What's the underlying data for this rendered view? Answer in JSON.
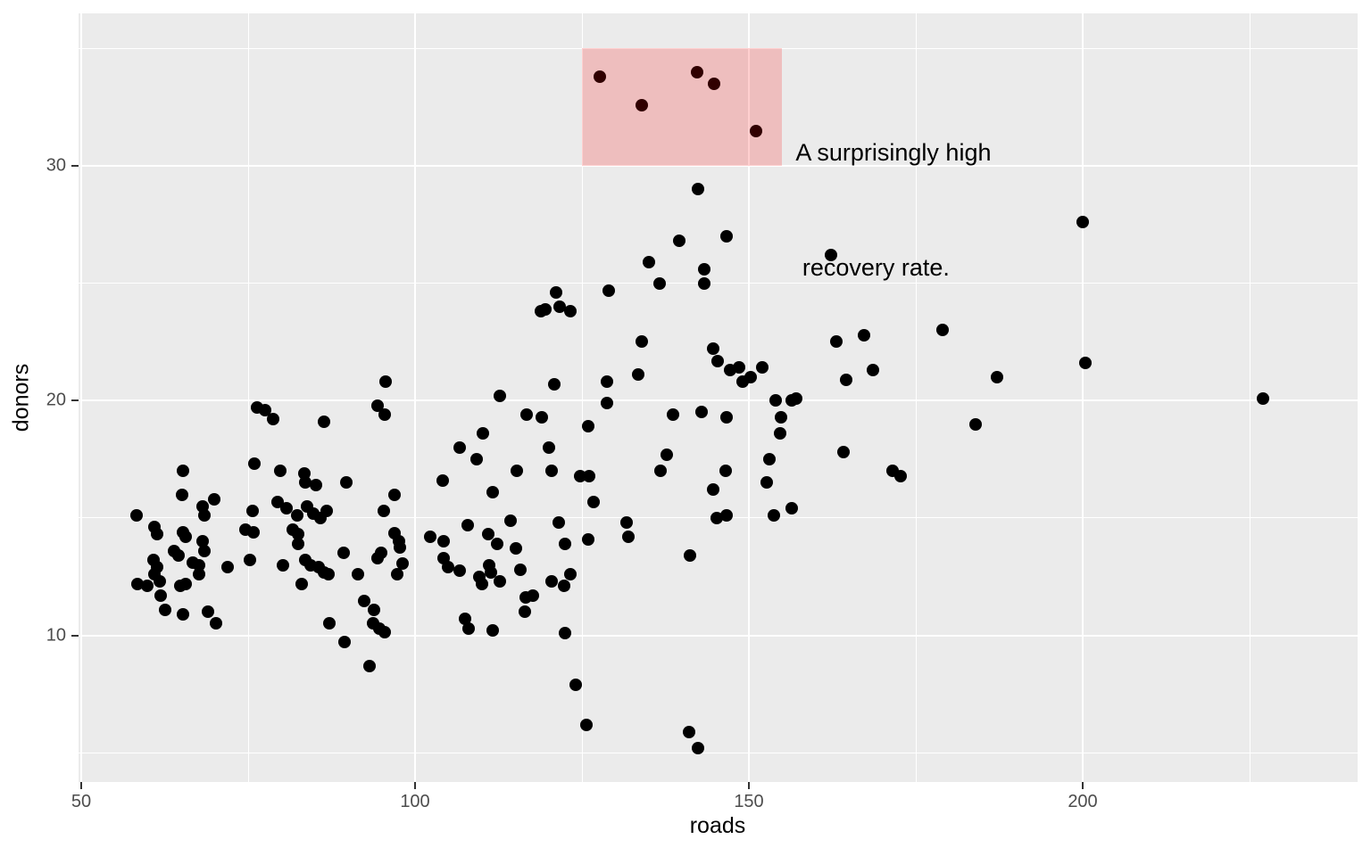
{
  "chart_data": {
    "type": "scatter",
    "title": "",
    "xlabel": "roads",
    "ylabel": "donors",
    "xlim": [
      49.6,
      241.5
    ],
    "ylim": [
      3.7,
      36.5
    ],
    "x_ticks": [
      50,
      100,
      150,
      200
    ],
    "y_ticks": [
      10,
      20,
      30
    ],
    "x_minor_gridlines": [
      75,
      125,
      175,
      225
    ],
    "y_minor_gridlines": [
      5,
      15,
      25,
      35
    ],
    "grid": "on",
    "legend": "none",
    "styles": {
      "panel_bg": "#EBEBEB",
      "gridline": "#FFFFFF",
      "point_color": "#000000",
      "tick_label_color": "#4D4D4D",
      "axis_title_color": "#000000",
      "highlight_fill": "#FF0000",
      "highlight_alpha": 0.19
    },
    "annotation": {
      "rect": {
        "xmin": 125,
        "xmax": 155,
        "ymin": 30,
        "ymax": 35
      },
      "text": {
        "x": 157,
        "y": 33,
        "lines": [
          "A surprisingly high",
          " recovery rate."
        ]
      }
    },
    "points": [
      [
        76.3,
        19.7
      ],
      [
        77.5,
        19.6
      ],
      [
        78.7,
        19.2
      ],
      [
        86.4,
        19.1
      ],
      [
        95.6,
        20.8
      ],
      [
        94.4,
        19.8
      ],
      [
        95.5,
        19.4
      ],
      [
        75.9,
        17.3
      ],
      [
        79.8,
        17.0
      ],
      [
        83.4,
        16.9
      ],
      [
        65.2,
        17.0
      ],
      [
        142.4,
        29.0
      ],
      [
        139.6,
        26.8
      ],
      [
        146.7,
        27.0
      ],
      [
        135.0,
        25.9
      ],
      [
        136.6,
        25.0
      ],
      [
        143.3,
        25.6
      ],
      [
        143.3,
        25.0
      ],
      [
        129.0,
        24.7
      ],
      [
        121.1,
        24.6
      ],
      [
        121.7,
        24.0
      ],
      [
        118.9,
        23.8
      ],
      [
        119.5,
        23.9
      ],
      [
        123.3,
        23.8
      ],
      [
        134.0,
        22.5
      ],
      [
        144.6,
        22.2
      ],
      [
        145.3,
        21.7
      ],
      [
        133.4,
        21.1
      ],
      [
        128.8,
        20.8
      ],
      [
        120.8,
        20.7
      ],
      [
        112.7,
        20.2
      ],
      [
        128.8,
        19.9
      ],
      [
        116.7,
        19.4
      ],
      [
        119.0,
        19.3
      ],
      [
        138.6,
        19.4
      ],
      [
        142.9,
        19.5
      ],
      [
        146.6,
        19.3
      ],
      [
        126.0,
        18.9
      ],
      [
        110.2,
        18.6
      ],
      [
        106.7,
        18.0
      ],
      [
        120.0,
        18.0
      ],
      [
        109.2,
        17.5
      ],
      [
        137.7,
        17.7
      ],
      [
        136.8,
        17.0
      ],
      [
        115.2,
        17.0
      ],
      [
        120.4,
        17.0
      ],
      [
        124.7,
        16.8
      ],
      [
        126.1,
        16.8
      ],
      [
        146.5,
        17.0
      ],
      [
        162.3,
        26.2
      ],
      [
        179.0,
        23.0
      ],
      [
        167.3,
        22.8
      ],
      [
        163.1,
        22.5
      ],
      [
        147.2,
        21.3
      ],
      [
        148.5,
        21.4
      ],
      [
        152.0,
        21.4
      ],
      [
        149.0,
        20.8
      ],
      [
        150.3,
        21.0
      ],
      [
        164.6,
        20.9
      ],
      [
        168.6,
        21.3
      ],
      [
        187.2,
        21.0
      ],
      [
        154.0,
        20.0
      ],
      [
        156.4,
        20.0
      ],
      [
        157.1,
        20.1
      ],
      [
        154.8,
        19.3
      ],
      [
        154.7,
        18.6
      ],
      [
        153.1,
        17.5
      ],
      [
        164.2,
        17.8
      ],
      [
        184.0,
        19.0
      ],
      [
        171.5,
        17.0
      ],
      [
        172.7,
        16.8
      ],
      [
        200.0,
        27.6
      ],
      [
        200.4,
        21.6
      ],
      [
        227.0,
        20.1
      ],
      [
        152.7,
        16.5
      ],
      [
        156.4,
        15.4
      ],
      [
        153.7,
        15.1
      ],
      [
        127.7,
        33.8
      ],
      [
        134.0,
        32.6
      ],
      [
        142.2,
        34.0
      ],
      [
        144.8,
        33.5
      ],
      [
        151.1,
        31.5
      ],
      [
        83.5,
        16.5
      ],
      [
        85.2,
        16.4
      ],
      [
        89.7,
        16.5
      ],
      [
        96.9,
        16.0
      ],
      [
        65.1,
        16.0
      ],
      [
        68.2,
        15.5
      ],
      [
        69.9,
        15.8
      ],
      [
        68.5,
        15.1
      ],
      [
        58.3,
        15.1
      ],
      [
        95.3,
        15.3
      ],
      [
        75.7,
        15.3
      ],
      [
        74.6,
        14.5
      ],
      [
        75.8,
        14.4
      ],
      [
        61.0,
        14.6
      ],
      [
        61.3,
        14.3
      ],
      [
        65.2,
        14.4
      ],
      [
        65.6,
        14.2
      ],
      [
        68.2,
        14.0
      ],
      [
        68.5,
        13.6
      ],
      [
        63.9,
        13.6
      ],
      [
        64.6,
        13.4
      ],
      [
        66.7,
        13.1
      ],
      [
        67.6,
        13.0
      ],
      [
        67.6,
        12.6
      ],
      [
        71.9,
        12.9
      ],
      [
        75.3,
        13.2
      ],
      [
        60.8,
        13.2
      ],
      [
        61.3,
        12.9
      ],
      [
        61.0,
        12.6
      ],
      [
        61.8,
        12.3
      ],
      [
        59.9,
        12.1
      ],
      [
        58.4,
        12.2
      ],
      [
        64.8,
        12.1
      ],
      [
        65.6,
        12.2
      ],
      [
        61.9,
        11.7
      ],
      [
        62.6,
        11.1
      ],
      [
        65.2,
        10.9
      ],
      [
        69.0,
        11.0
      ],
      [
        70.2,
        10.5
      ],
      [
        89.5,
        9.7
      ],
      [
        93.2,
        8.7
      ],
      [
        87.1,
        10.5
      ],
      [
        93.7,
        10.5
      ],
      [
        94.7,
        10.3
      ],
      [
        95.4,
        10.15
      ],
      [
        104.1,
        16.6
      ],
      [
        111.6,
        16.1
      ],
      [
        126.7,
        15.7
      ],
      [
        144.7,
        16.2
      ],
      [
        145.2,
        15.0
      ],
      [
        146.7,
        15.1
      ],
      [
        107.9,
        14.7
      ],
      [
        102.3,
        14.2
      ],
      [
        104.3,
        14.0
      ],
      [
        114.3,
        14.9
      ],
      [
        111.0,
        14.3
      ],
      [
        112.3,
        13.9
      ],
      [
        115.1,
        13.7
      ],
      [
        121.5,
        14.8
      ],
      [
        122.5,
        13.9
      ],
      [
        126.0,
        14.1
      ],
      [
        131.7,
        14.8
      ],
      [
        132.0,
        14.2
      ],
      [
        141.2,
        13.4
      ],
      [
        104.3,
        13.3
      ],
      [
        104.9,
        12.9
      ],
      [
        106.7,
        12.75
      ],
      [
        111.1,
        13.0
      ],
      [
        111.4,
        12.7
      ],
      [
        109.6,
        12.5
      ],
      [
        110.0,
        12.2
      ],
      [
        112.7,
        12.3
      ],
      [
        115.8,
        12.8
      ],
      [
        120.5,
        12.3
      ],
      [
        122.3,
        12.1
      ],
      [
        123.3,
        12.6
      ],
      [
        116.6,
        11.6
      ],
      [
        117.7,
        11.7
      ],
      [
        116.4,
        11.0
      ],
      [
        107.5,
        10.7
      ],
      [
        108.0,
        10.3
      ],
      [
        111.6,
        10.2
      ],
      [
        122.5,
        10.1
      ],
      [
        124.0,
        7.9
      ],
      [
        125.7,
        6.2
      ],
      [
        141.1,
        5.9
      ],
      [
        142.4,
        5.2
      ],
      [
        96.9,
        14.35
      ],
      [
        97.6,
        14.0
      ],
      [
        97.7,
        13.75
      ],
      [
        98.1,
        13.05
      ],
      [
        97.3,
        12.6
      ],
      [
        81.7,
        14.5
      ],
      [
        82.5,
        14.3
      ],
      [
        82.5,
        13.9
      ],
      [
        79.4,
        15.7
      ],
      [
        80.8,
        15.4
      ],
      [
        82.4,
        15.1
      ],
      [
        83.8,
        15.5
      ],
      [
        84.7,
        15.2
      ],
      [
        85.8,
        15.0
      ],
      [
        86.7,
        15.3
      ],
      [
        89.3,
        13.5
      ],
      [
        94.4,
        13.3
      ],
      [
        94.9,
        13.5
      ],
      [
        83.6,
        13.2
      ],
      [
        84.4,
        13.0
      ],
      [
        85.6,
        12.9
      ],
      [
        86.4,
        12.7
      ],
      [
        87.0,
        12.6
      ],
      [
        91.5,
        12.6
      ],
      [
        92.4,
        11.45
      ],
      [
        93.9,
        11.1
      ],
      [
        80.2,
        13.0
      ],
      [
        83.0,
        12.2
      ]
    ]
  }
}
